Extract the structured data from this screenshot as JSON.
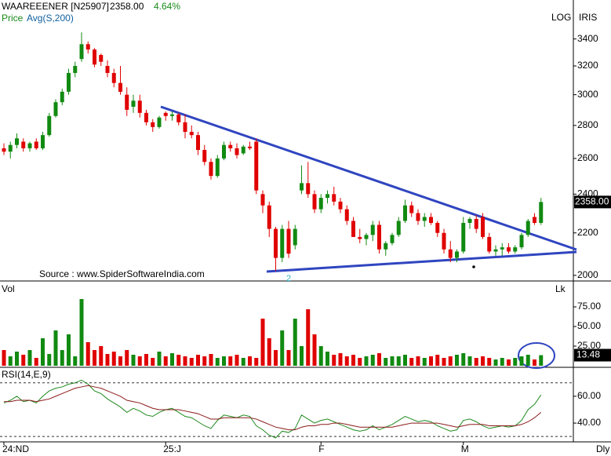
{
  "header": {
    "symbol": "WAAREEENER [N25907]",
    "last": "2358.00",
    "change": "4.64%",
    "price_label": "Price",
    "avg_label": "Avg(S,200)",
    "scale_mode": "LOG",
    "view": "IRIS",
    "source": "Source : www.SpiderSoftwareIndia.com",
    "interval": "Dly"
  },
  "chart_data": [
    {
      "type": "candlestick",
      "log": true,
      "up_color": "#118a11",
      "down_color": "#e00000",
      "ylim": [
        1975,
        3620
      ],
      "yticks": [
        2000,
        2200,
        2400,
        2600,
        2800,
        3000,
        3200,
        3400
      ],
      "annotation": "2",
      "categories": [
        "24:ND",
        null,
        null,
        null,
        null,
        null,
        null,
        null,
        null,
        null,
        null,
        null,
        null,
        null,
        null,
        null,
        null,
        null,
        null,
        null,
        null,
        null,
        null,
        null,
        null,
        "25:J",
        null,
        null,
        null,
        null,
        null,
        null,
        null,
        null,
        null,
        null,
        null,
        null,
        null,
        null,
        null,
        null,
        null,
        null,
        null,
        null,
        null,
        null,
        null,
        "F",
        null,
        null,
        null,
        null,
        null,
        null,
        null,
        null,
        null,
        null,
        null,
        null,
        null,
        null,
        null,
        null,
        null,
        null,
        null,
        null,
        null,
        "M",
        null,
        null,
        null,
        null,
        null,
        null,
        null,
        null,
        null,
        null,
        null,
        null
      ],
      "open": [
        2660,
        2640,
        2680,
        2700,
        2660,
        2700,
        2660,
        2740,
        2860,
        2950,
        3020,
        3150,
        3250,
        3360,
        3320,
        3280,
        3200,
        3150,
        3080,
        3000,
        2920,
        2960,
        2880,
        2820,
        2790,
        2880,
        2860,
        2870,
        2820,
        2760,
        2740,
        2650,
        2580,
        2500,
        2600,
        2680,
        2660,
        2630,
        2670,
        2700,
        2400,
        2340,
        2220,
        2080,
        2220,
        2140,
        2420,
        2460,
        2400,
        2320,
        2380,
        2400,
        2360,
        2320,
        2260,
        2180,
        2170,
        2190,
        2240,
        2120,
        2150,
        2190,
        2260,
        2340,
        2300,
        2260,
        2280,
        2250,
        2200,
        2120,
        2080,
        2110,
        2250,
        2270,
        2280,
        2180,
        2110,
        2120,
        2130,
        2110,
        2130,
        2190,
        2280,
        2250
      ],
      "high": [
        2690,
        2700,
        2750,
        2720,
        2700,
        2720,
        2760,
        2880,
        2970,
        3040,
        3180,
        3230,
        3450,
        3380,
        3330,
        3290,
        3240,
        3180,
        3200,
        3050,
        3000,
        3000,
        2900,
        2840,
        2860,
        2890,
        2890,
        2880,
        2870,
        2800,
        2760,
        2680,
        2600,
        2620,
        2700,
        2700,
        2690,
        2680,
        2700,
        2720,
        2420,
        2360,
        2230,
        2240,
        2260,
        2240,
        2560,
        2580,
        2420,
        2400,
        2420,
        2440,
        2380,
        2340,
        2280,
        2220,
        2200,
        2260,
        2260,
        2160,
        2200,
        2280,
        2370,
        2360,
        2320,
        2300,
        2300,
        2260,
        2220,
        2160,
        2120,
        2280,
        2280,
        2290,
        2300,
        2200,
        2140,
        2150,
        2150,
        2140,
        2200,
        2270,
        2300,
        2380
      ],
      "low": [
        2620,
        2600,
        2660,
        2640,
        2640,
        2650,
        2650,
        2730,
        2850,
        2930,
        3000,
        3120,
        3230,
        3290,
        3190,
        3200,
        3120,
        3050,
        3000,
        2860,
        2880,
        2850,
        2800,
        2760,
        2780,
        2830,
        2830,
        2800,
        2720,
        2720,
        2620,
        2560,
        2480,
        2490,
        2590,
        2640,
        2600,
        2620,
        2650,
        2400,
        2300,
        2180,
        2020,
        2060,
        2080,
        2120,
        2400,
        2380,
        2300,
        2300,
        2350,
        2340,
        2300,
        2240,
        2180,
        2150,
        2140,
        2160,
        2100,
        2090,
        2140,
        2180,
        2250,
        2280,
        2240,
        2230,
        2240,
        2180,
        2100,
        2060,
        2060,
        2100,
        2220,
        2200,
        2170,
        2100,
        2090,
        2090,
        2100,
        2100,
        2120,
        2180,
        2240,
        2240
      ],
      "close": [
        2640,
        2680,
        2720,
        2660,
        2690,
        2660,
        2740,
        2860,
        2950,
        3020,
        3150,
        3200,
        3360,
        3320,
        3210,
        3230,
        3150,
        3080,
        3020,
        2900,
        2960,
        2880,
        2820,
        2790,
        2850,
        2860,
        2870,
        2820,
        2760,
        2740,
        2650,
        2580,
        2500,
        2600,
        2680,
        2660,
        2620,
        2670,
        2660,
        2420,
        2340,
        2220,
        2080,
        2220,
        2100,
        2220,
        2460,
        2400,
        2320,
        2380,
        2400,
        2360,
        2320,
        2260,
        2180,
        2170,
        2190,
        2240,
        2120,
        2150,
        2190,
        2260,
        2340,
        2300,
        2260,
        2280,
        2250,
        2200,
        2120,
        2080,
        2110,
        2250,
        2270,
        2220,
        2180,
        2110,
        2120,
        2130,
        2110,
        2130,
        2190,
        2260,
        2250,
        2358
      ]
    },
    {
      "type": "bar",
      "title": "Vol",
      "unit": "Lk",
      "ylim": [
        0,
        100
      ],
      "yticks": [
        {
          "value": 25,
          "label": "25.00"
        },
        {
          "value": 50,
          "label": "50.00"
        },
        {
          "value": 75,
          "label": "75.00"
        }
      ],
      "values": [
        20,
        12,
        18,
        14,
        20,
        10,
        35,
        15,
        45,
        20,
        40,
        12,
        85,
        30,
        20,
        25,
        15,
        18,
        12,
        20,
        14,
        12,
        15,
        10,
        18,
        12,
        16,
        14,
        12,
        10,
        14,
        12,
        15,
        10,
        12,
        12,
        14,
        10,
        12,
        10,
        60,
        35,
        20,
        45,
        20,
        60,
        25,
        72,
        40,
        25,
        18,
        14,
        16,
        12,
        14,
        10,
        12,
        14,
        16,
        10,
        12,
        12,
        14,
        10,
        12,
        10,
        12,
        14,
        10,
        12,
        14,
        16,
        12,
        10,
        12,
        10,
        8,
        10,
        8,
        10,
        12,
        14,
        8,
        13.48
      ]
    },
    {
      "type": "line",
      "title": "RSI(14,E,9)",
      "ylim": [
        26,
        81
      ],
      "yticks": [
        {
          "value": 40,
          "label": "40.00"
        },
        {
          "value": 60,
          "label": "60.00"
        }
      ],
      "bands": [
        30,
        70
      ],
      "series": [
        {
          "color": "#1f8a1f",
          "values": [
            55,
            57,
            60,
            56,
            57,
            55,
            60,
            64,
            66,
            67,
            69,
            70,
            72,
            69,
            64,
            62,
            58,
            55,
            52,
            48,
            51,
            49,
            46,
            45,
            48,
            50,
            51,
            48,
            45,
            44,
            41,
            38,
            36,
            42,
            46,
            45,
            44,
            46,
            45,
            38,
            35,
            31,
            29,
            34,
            33,
            36,
            46,
            43,
            40,
            42,
            43,
            41,
            39,
            37,
            35,
            34,
            35,
            38,
            35,
            37,
            39,
            42,
            45,
            43,
            41,
            42,
            41,
            38,
            36,
            34,
            35,
            42,
            43,
            41,
            38,
            36,
            37,
            38,
            37,
            38,
            42,
            50,
            54,
            61
          ]
        },
        {
          "color": "#8b1a1a",
          "values": [
            56,
            56,
            57,
            57,
            57,
            56,
            57,
            58,
            60,
            62,
            64,
            66,
            67,
            68,
            67,
            66,
            64,
            62,
            60,
            57,
            56,
            55,
            53,
            51,
            50,
            50,
            50,
            50,
            49,
            48,
            47,
            45,
            43,
            43,
            44,
            44,
            44,
            44,
            44,
            43,
            41,
            39,
            37,
            36,
            35,
            35,
            37,
            38,
            38,
            39,
            39,
            40,
            40,
            39,
            38,
            37,
            37,
            37,
            37,
            37,
            37,
            38,
            39,
            40,
            40,
            40,
            40,
            40,
            39,
            38,
            37,
            38,
            39,
            39,
            39,
            38,
            38,
            38,
            38,
            38,
            39,
            41,
            44,
            48
          ]
        }
      ]
    }
  ]
}
